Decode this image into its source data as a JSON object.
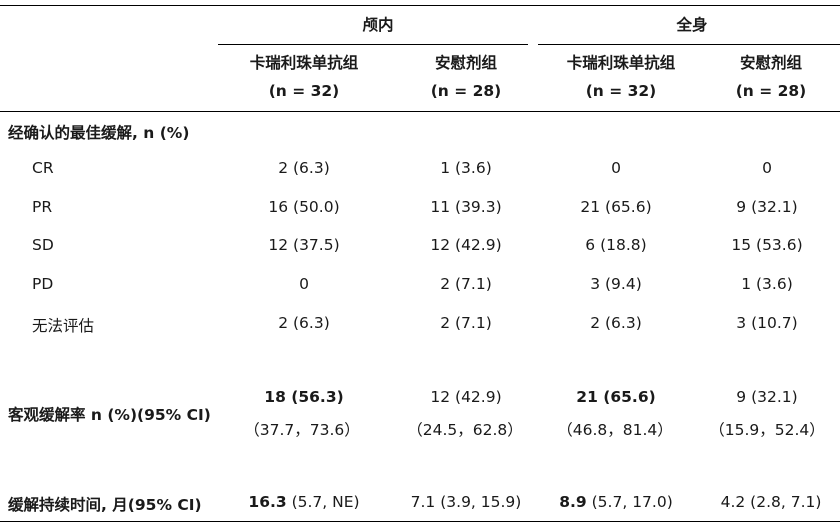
{
  "header": {
    "group1": "颅内",
    "group2": "全身",
    "arm1": "卡瑞利珠单抗组",
    "arm2": "安慰剂组",
    "n1": "(n = 32)",
    "n2": "(n = 28)"
  },
  "section_best": "经确认的最佳缓解, n (%)",
  "rows": [
    {
      "label": "CR",
      "v": [
        "2 (6.3)",
        "1 (3.6)",
        "0",
        "0"
      ]
    },
    {
      "label": "PR",
      "v": [
        "16 (50.0)",
        "11 (39.3)",
        "21 (65.6)",
        "9 (32.1)"
      ]
    },
    {
      "label": "SD",
      "v": [
        "12 (37.5)",
        "12 (42.9)",
        "6 (18.8)",
        "15 (53.6)"
      ]
    },
    {
      "label": "PD",
      "v": [
        "0",
        "2 (7.1)",
        "3 (9.4)",
        "1 (3.6)"
      ]
    },
    {
      "label": "无法评估",
      "v": [
        "2 (6.3)",
        "2 (7.1)",
        "2 (6.3)",
        "3 (10.7)"
      ]
    }
  ],
  "orr": {
    "label": "客观缓解率 n (%)(95% CI)",
    "v": [
      "18 (56.3)",
      "12 (42.9)",
      "21 (65.6)",
      "9 (32.1)"
    ],
    "ci": [
      "（37.7，73.6）",
      "（24.5，62.8）",
      "（46.8，81.4）",
      "（15.9，52.4）"
    ]
  },
  "dor": {
    "label": "缓解持续时间, 月(95% CI)",
    "main": [
      "16.3",
      "7.1",
      "8.9",
      "4.2"
    ],
    "rest": [
      " (5.7, NE)",
      " (3.9, 15.9)",
      " (5.7, 17.0)",
      " (2.8, 7.1)"
    ]
  }
}
